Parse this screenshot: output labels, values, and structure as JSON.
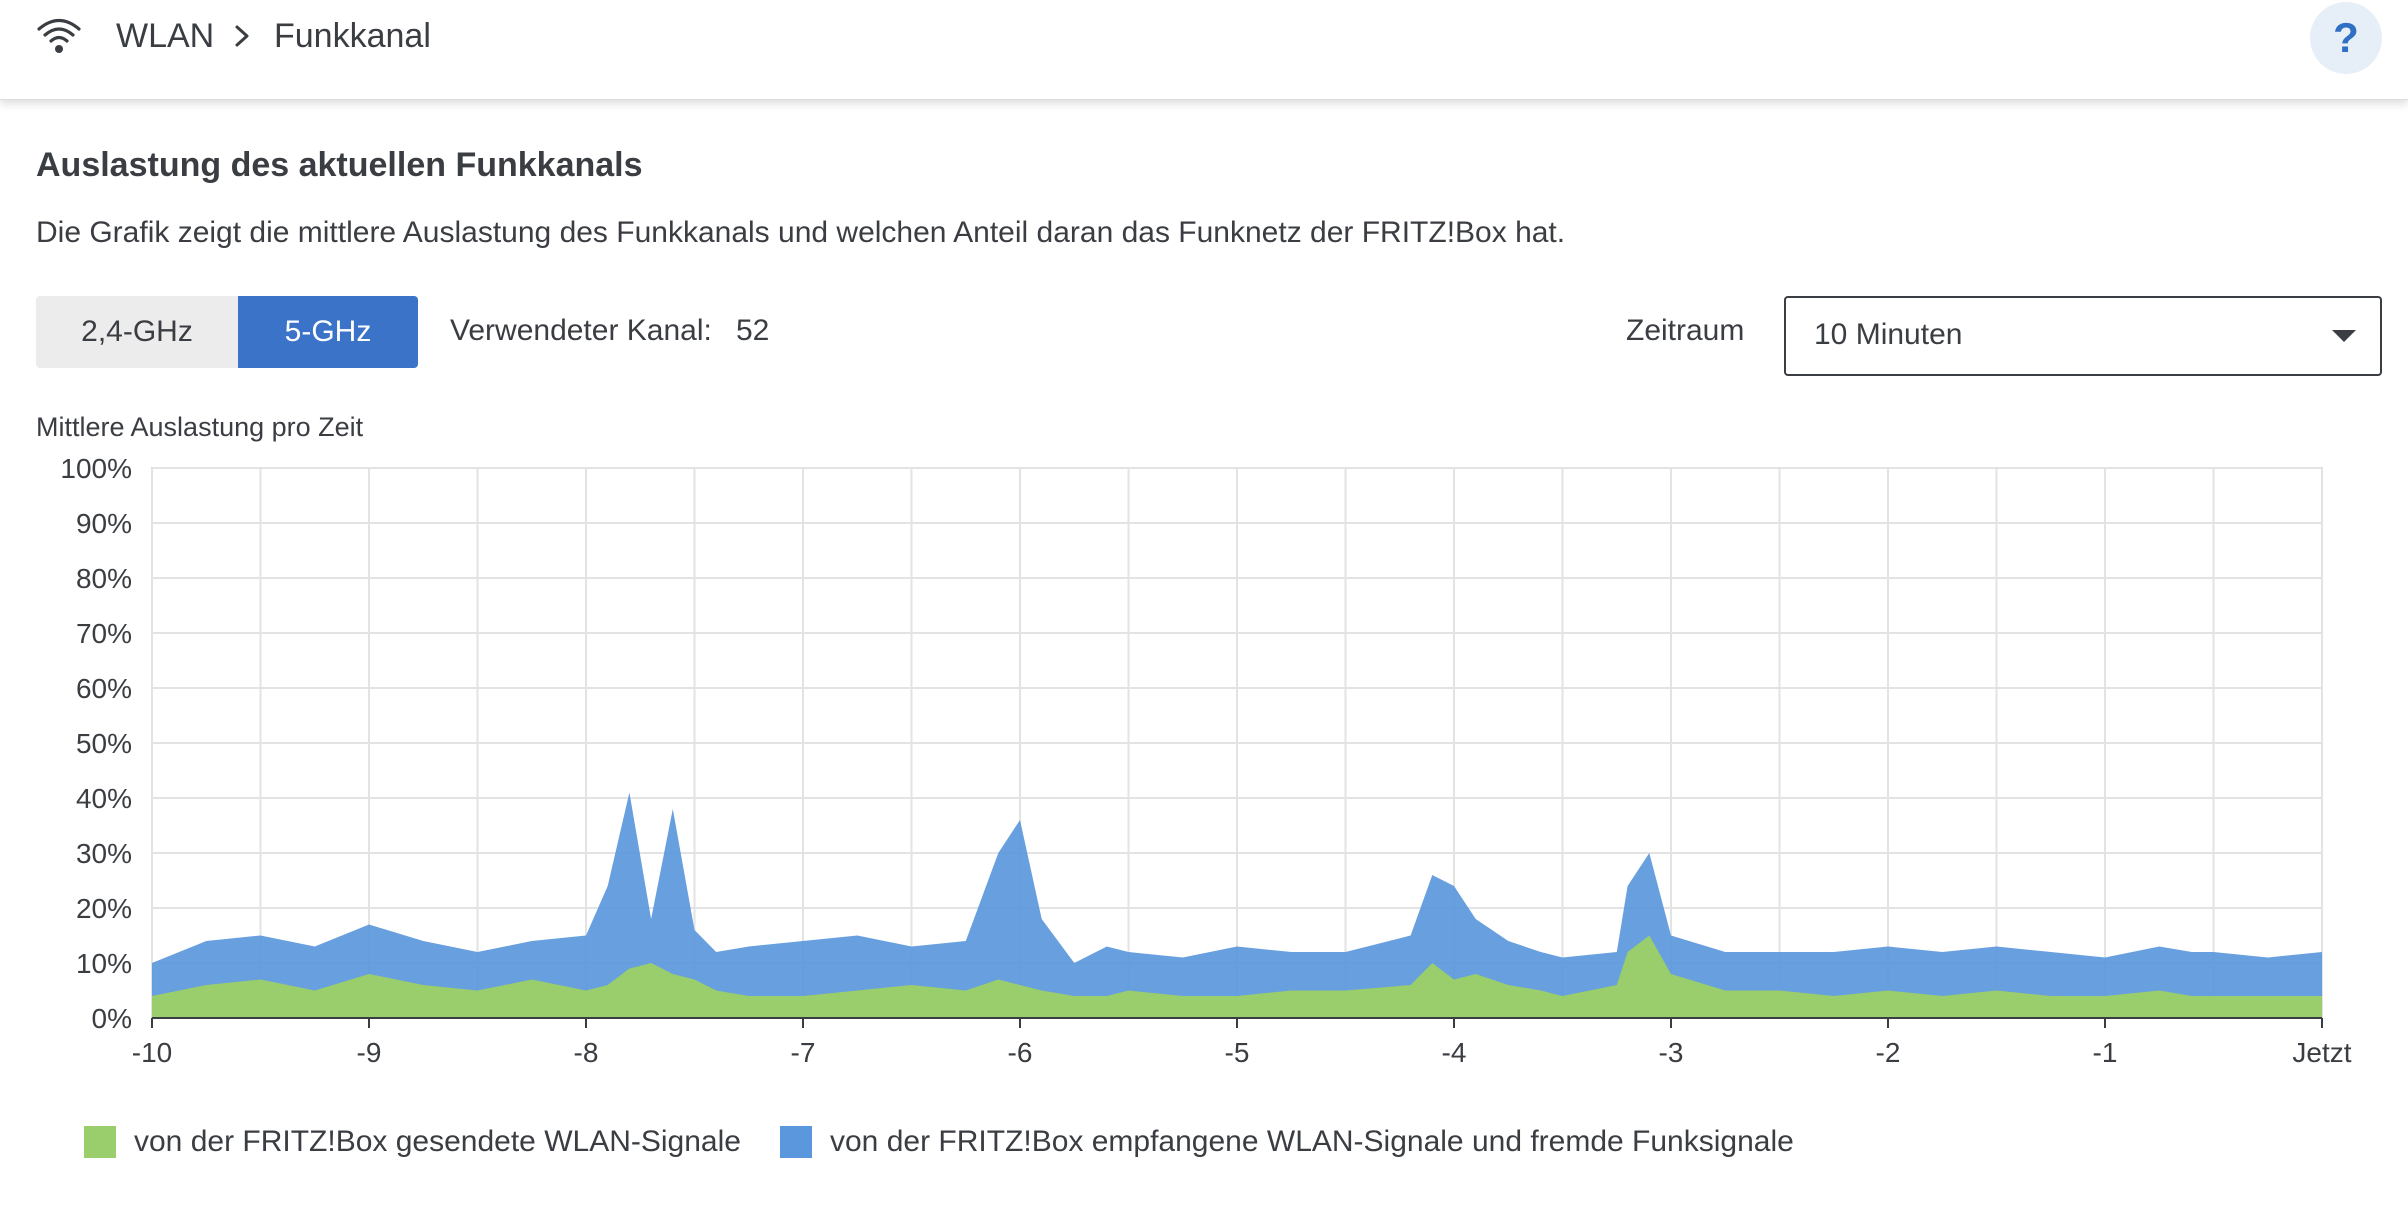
{
  "header": {
    "icon": "wifi-icon",
    "breadcrumb": [
      "WLAN",
      "Funkkanal"
    ],
    "help_label": "?"
  },
  "section": {
    "title": "Auslastung des aktuellen Funkkanals",
    "description": "Die Grafik zeigt die mittlere Auslastung des Funkkanals und welchen Anteil daran das Funknetz der FRITZ!Box hat."
  },
  "band": {
    "options": [
      "2,4-GHz",
      "5-GHz"
    ],
    "selected": "5-GHz"
  },
  "channel": {
    "label": "Verwendeter Kanal:",
    "value": "52"
  },
  "period": {
    "label": "Zeitraum",
    "value": "10 Minuten"
  },
  "chart_title": "Mittlere Auslastung pro Zeit",
  "colors": {
    "sent": "#9acd6b",
    "received": "#5a97dc",
    "accent": "#3b73c9",
    "grid": "#e3e3e3"
  },
  "chart_data": {
    "type": "area",
    "title": "Mittlere Auslastung pro Zeit",
    "xlim": [
      -10,
      0
    ],
    "ylim": [
      0,
      100
    ],
    "x_ticks": [
      -10,
      -9,
      -8,
      -7,
      -6,
      -5,
      -4,
      -3,
      -2,
      -1,
      0
    ],
    "x_tick_labels": [
      "-10",
      "-9",
      "-8",
      "-7",
      "-6",
      "-5",
      "-4",
      "-3",
      "-2",
      "-1",
      "Jetzt"
    ],
    "y_ticks": [
      0,
      10,
      20,
      30,
      40,
      50,
      60,
      70,
      80,
      90,
      100
    ],
    "y_tick_labels": [
      "0%",
      "10%",
      "20%",
      "30%",
      "40%",
      "50%",
      "60%",
      "70%",
      "80%",
      "90%",
      "100%"
    ],
    "grid": true,
    "legend_position": "bottom",
    "x": [
      -10,
      -9.75,
      -9.5,
      -9.25,
      -9,
      -8.75,
      -8.5,
      -8.25,
      -8,
      -7.9,
      -7.8,
      -7.7,
      -7.6,
      -7.5,
      -7.4,
      -7.25,
      -7,
      -6.75,
      -6.5,
      -6.25,
      -6.1,
      -6,
      -5.9,
      -5.75,
      -5.6,
      -5.5,
      -5.25,
      -5,
      -4.75,
      -4.5,
      -4.2,
      -4.1,
      -4,
      -3.9,
      -3.75,
      -3.6,
      -3.5,
      -3.25,
      -3.2,
      -3.1,
      -3,
      -2.75,
      -2.5,
      -2.25,
      -2,
      -1.75,
      -1.5,
      -1.25,
      -1,
      -0.75,
      -0.6,
      -0.5,
      -0.25,
      0
    ],
    "series": [
      {
        "name": "von der FRITZ!Box gesendete WLAN-Signale",
        "values": [
          4,
          6,
          7,
          5,
          8,
          6,
          5,
          7,
          5,
          6,
          9,
          10,
          8,
          7,
          5,
          4,
          4,
          5,
          6,
          5,
          7,
          6,
          5,
          4,
          4,
          5,
          4,
          4,
          5,
          5,
          6,
          10,
          7,
          8,
          6,
          5,
          4,
          6,
          12,
          15,
          8,
          5,
          5,
          4,
          5,
          4,
          5,
          4,
          4,
          5,
          4,
          4,
          4,
          4
        ]
      },
      {
        "name": "von der FRITZ!Box empfangene WLAN-Signale und fremde Funksignale",
        "values": [
          10,
          14,
          15,
          13,
          17,
          14,
          12,
          14,
          15,
          24,
          41,
          18,
          38,
          16,
          12,
          13,
          14,
          15,
          13,
          14,
          30,
          36,
          18,
          10,
          13,
          12,
          11,
          13,
          12,
          12,
          15,
          26,
          24,
          18,
          14,
          12,
          11,
          12,
          24,
          30,
          15,
          12,
          12,
          12,
          13,
          12,
          13,
          12,
          11,
          13,
          12,
          12,
          11,
          12
        ]
      }
    ]
  },
  "legend": {
    "sent": "von der FRITZ!Box gesendete WLAN-Signale",
    "received": "von der FRITZ!Box empfangene WLAN-Signale und fremde Funksignale"
  }
}
